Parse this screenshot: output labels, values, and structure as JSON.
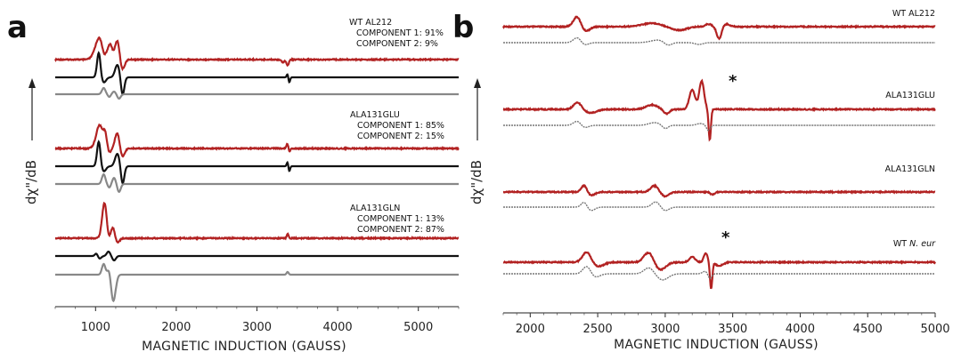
{
  "chart_data": [
    {
      "panel": "a",
      "type": "line",
      "xlabel": "MAGNETIC INDUCTION (GAUSS)",
      "ylabel": "dχ\"/dB",
      "xlim": [
        500,
        5500
      ],
      "xticks": [
        1000,
        2000,
        3000,
        4000,
        5000
      ],
      "tick_labels": [
        "1000",
        "2000",
        "3000",
        "4000",
        "5000"
      ],
      "groups": [
        {
          "sample": "WT AL212",
          "components": [
            "COMPONENT 1: 91%",
            "COMPONENT 2: 9%"
          ],
          "traces": [
            {
              "role": "experimental",
              "color": "#b22222",
              "baseline": 0.93,
              "features": [
                [
                  1050,
                  75,
                  -25
                ],
                [
                  1100,
                  35,
                  8
                ],
                [
                  1180,
                  40,
                  -16
                ],
                [
                  1270,
                  40,
                  -22
                ],
                [
                  1330,
                  40,
                  12
                ],
                [
                  3320,
                  25,
                  3
                ],
                [
                  3380,
                  20,
                  7
                ]
              ]
            },
            {
              "role": "component-1",
              "color": "#111111",
              "baseline": 0.5,
              "features": [
                [
                  1040,
                  30,
                  -28
                ],
                [
                  1100,
                  40,
                  6
                ],
                [
                  1270,
                  40,
                  -14
                ],
                [
                  1335,
                  30,
                  20
                ],
                [
                  3380,
                  15,
                  -4
                ],
                [
                  3400,
                  15,
                  6
                ]
              ]
            },
            {
              "role": "component-2",
              "color": "#888888",
              "baseline": 0.2,
              "features": [
                [
                  1100,
                  30,
                  -7
                ],
                [
                  1170,
                  25,
                  3
                ],
                [
                  1230,
                  30,
                  -3
                ],
                [
                  1290,
                  30,
                  5
                ]
              ]
            }
          ]
        },
        {
          "sample": "ALA131GLU",
          "components": [
            "COMPONENT 1: 85%",
            "COMPONENT 2: 15%"
          ],
          "traces": [
            {
              "role": "experimental",
              "color": "#b22222",
              "baseline": 0.8,
              "features": [
                [
                  1050,
                  60,
                  -26
                ],
                [
                  1120,
                  30,
                  -13
                ],
                [
                  1170,
                  30,
                  5
                ],
                [
                  1270,
                  40,
                  -18
                ],
                [
                  1330,
                  40,
                  10
                ],
                [
                  3380,
                  18,
                  -6
                ],
                [
                  3400,
                  18,
                  4
                ]
              ]
            },
            {
              "role": "component-1",
              "color": "#111111",
              "baseline": 0.5,
              "features": [
                [
                  1040,
                  30,
                  -28
                ],
                [
                  1100,
                  40,
                  6
                ],
                [
                  1270,
                  40,
                  -14
                ],
                [
                  1335,
                  30,
                  20
                ],
                [
                  3380,
                  15,
                  -5
                ],
                [
                  3400,
                  15,
                  6
                ]
              ]
            },
            {
              "role": "component-2",
              "color": "#888888",
              "baseline": 0.2,
              "features": [
                [
                  1100,
                  30,
                  -11
                ],
                [
                  1170,
                  25,
                  4
                ],
                [
                  1230,
                  30,
                  -7
                ],
                [
                  1290,
                  30,
                  9
                ]
              ]
            }
          ]
        },
        {
          "sample": "ALA131GLN",
          "components": [
            "COMPONENT 1: 13%",
            "COMPONENT 2: 87%"
          ],
          "traces": [
            {
              "role": "experimental",
              "color": "#b22222",
              "baseline": 0.8,
              "features": [
                [
                  1110,
                  40,
                  -40
                ],
                [
                  1160,
                  30,
                  4
                ],
                [
                  1220,
                  40,
                  -14
                ],
                [
                  1260,
                  40,
                  8
                ],
                [
                  3380,
                  15,
                  -5
                ]
              ]
            },
            {
              "role": "component-1",
              "color": "#111111",
              "baseline": 0.5,
              "features": [
                [
                  1010,
                  25,
                  -3
                ],
                [
                  1050,
                  30,
                  3
                ],
                [
                  1160,
                  30,
                  -5
                ],
                [
                  1230,
                  30,
                  5
                ]
              ]
            },
            {
              "role": "component-2",
              "color": "#888888",
              "baseline": 0.2,
              "features": [
                [
                  1100,
                  30,
                  -12
                ],
                [
                  1170,
                  30,
                  -8
                ],
                [
                  1220,
                  40,
                  30
                ],
                [
                  3380,
                  18,
                  -3
                ]
              ]
            }
          ]
        }
      ]
    },
    {
      "panel": "b",
      "type": "line",
      "xlabel": "MAGNETIC INDUCTION (GAUSS)",
      "ylabel": "dχ\"/dB",
      "xlim": [
        1800,
        5000
      ],
      "xticks": [
        2000,
        2500,
        3000,
        3500,
        4000,
        4500,
        5000
      ],
      "tick_labels": [
        "2000",
        "2500",
        "3000",
        "3500",
        "4000",
        "4500",
        "5000"
      ],
      "groups": [
        {
          "sample": "WT AL212",
          "traces": [
            {
              "role": "experimental",
              "color": "#b22222",
              "baseline": 0.8,
              "features": [
                [
                  2350,
                  40,
                  -13
                ],
                [
                  2400,
                  50,
                  6
                ],
                [
                  2900,
                  100,
                  -4
                ],
                [
                  3100,
                  80,
                  4
                ],
                [
                  3320,
                  30,
                  -3
                ],
                [
                  3400,
                  25,
                  14
                ],
                [
                  3450,
                  40,
                  -3
                ]
              ]
            },
            {
              "role": "simulation",
              "color": "#777777",
              "baseline": 0.35,
              "features": [
                [
                  2350,
                  40,
                  -6
                ],
                [
                  2400,
                  40,
                  3
                ],
                [
                  2950,
                  80,
                  -3
                ],
                [
                  3020,
                  40,
                  4
                ],
                [
                  3250,
                  40,
                  2
                ]
              ]
            }
          ]
        },
        {
          "sample": "ALA131GLU",
          "star": "*",
          "traces": [
            {
              "role": "experimental",
              "color": "#b22222",
              "baseline": 0.85,
              "features": [
                [
                  2350,
                  40,
                  -8
                ],
                [
                  2450,
                  60,
                  4
                ],
                [
                  2900,
                  60,
                  -5
                ],
                [
                  3010,
                  30,
                  5
                ],
                [
                  3200,
                  30,
                  -22
                ],
                [
                  3270,
                  25,
                  -32
                ],
                [
                  3330,
                  12,
                  34
                ]
              ]
            },
            {
              "role": "simulation",
              "color": "#777777",
              "baseline": 0.35,
              "features": [
                [
                  2350,
                  40,
                  -5
                ],
                [
                  2400,
                  40,
                  3
                ],
                [
                  2920,
                  60,
                  -3
                ],
                [
                  3000,
                  30,
                  4
                ],
                [
                  3260,
                  40,
                  -2
                ],
                [
                  3320,
                  20,
                  6
                ]
              ]
            }
          ]
        },
        {
          "sample": "ALA131GLN",
          "traces": [
            {
              "role": "experimental",
              "color": "#b22222",
              "baseline": 0.85,
              "features": [
                [
                  2400,
                  30,
                  -8
                ],
                [
                  2450,
                  40,
                  4
                ],
                [
                  2920,
                  40,
                  -7
                ],
                [
                  3000,
                  40,
                  5
                ],
                [
                  3350,
                  20,
                  3
                ]
              ]
            },
            {
              "role": "simulation",
              "color": "#777777",
              "baseline": 0.35,
              "features": [
                [
                  2400,
                  30,
                  -6
                ],
                [
                  2450,
                  40,
                  4
                ],
                [
                  2930,
                  40,
                  -6
                ],
                [
                  3000,
                  40,
                  4
                ]
              ]
            }
          ]
        },
        {
          "sample": "WT N. eur",
          "sample_prefix": "WT ",
          "sample_italic": "N. eur",
          "star": "*",
          "traces": [
            {
              "role": "experimental",
              "color": "#b22222",
              "baseline": 0.8,
              "features": [
                [
                  2420,
                  45,
                  -12
                ],
                [
                  2500,
                  60,
                  5
                ],
                [
                  2880,
                  50,
                  -12
                ],
                [
                  2960,
                  60,
                  9
                ],
                [
                  3200,
                  30,
                  -6
                ],
                [
                  3300,
                  20,
                  -10
                ],
                [
                  3340,
                  12,
                  30
                ],
                [
                  3400,
                  40,
                  4
                ]
              ]
            },
            {
              "role": "simulation",
              "color": "#777777",
              "baseline": 0.35,
              "features": [
                [
                  2420,
                  40,
                  -9
                ],
                [
                  2480,
                  50,
                  4
                ],
                [
                  2880,
                  50,
                  -7
                ],
                [
                  2980,
                  60,
                  7
                ],
                [
                  3300,
                  30,
                  -3
                ],
                [
                  3330,
                  20,
                  6
                ]
              ]
            }
          ]
        }
      ]
    }
  ]
}
